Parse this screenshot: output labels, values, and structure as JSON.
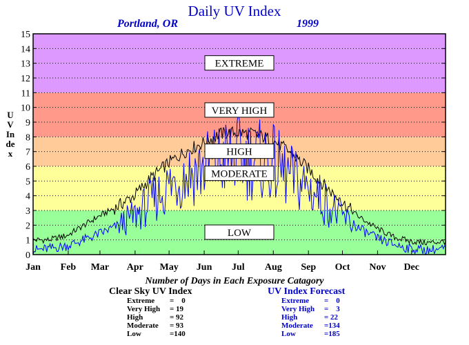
{
  "title": "Daily UV Index",
  "location": "Portland, OR",
  "year": "1999",
  "ylabel": "UV Index",
  "counts_title": "Number of Days in Each Exposure Catagory",
  "colors": {
    "extreme": "#dd99ff",
    "very_high": "#ff9a8a",
    "high": "#ffcc99",
    "moderate": "#ffff99",
    "low": "#99ff99",
    "clear_sky_line": "#000000",
    "forecast_line": "#0000ff"
  },
  "clear_sky": {
    "heading": "Clear Sky UV Index",
    "rows": [
      {
        "name": "Extreme",
        "value": "=    0"
      },
      {
        "name": "Very High",
        "value": "= 19"
      },
      {
        "name": "High",
        "value": "= 92"
      },
      {
        "name": "Moderate",
        "value": "= 93"
      },
      {
        "name": "Low",
        "value": "=140"
      }
    ]
  },
  "forecast": {
    "heading": "UV Index Forecast",
    "rows": [
      {
        "name": "Extreme",
        "value": "=    0"
      },
      {
        "name": "Very High",
        "value": "=    3"
      },
      {
        "name": "High",
        "value": "= 22"
      },
      {
        "name": "Moderate",
        "value": "=134"
      },
      {
        "name": "Low",
        "value": "=185"
      }
    ]
  },
  "chart_data": {
    "type": "line",
    "title": "Daily UV Index",
    "ylabel": "UV Index",
    "xlabel": "",
    "ylim": [
      0,
      15
    ],
    "yticks": [
      "0",
      "1",
      "2",
      "3",
      "4",
      "5",
      "6",
      "7",
      "8",
      "9",
      "10",
      "11",
      "12",
      "13",
      "14",
      "15"
    ],
    "months": [
      "Jan",
      "Feb",
      "Mar",
      "Apr",
      "May",
      "Jun",
      "Jul",
      "Aug",
      "Sep",
      "Oct",
      "Nov",
      "Dec"
    ],
    "grid": true,
    "bands": [
      {
        "label": "LOW",
        "from": 0,
        "to": 3,
        "label_y": 1.5
      },
      {
        "label": "MODERATE",
        "from": 3,
        "to": 6,
        "label_y": 5.5
      },
      {
        "label": "HIGH",
        "from": 6,
        "to": 8,
        "label_y": 7.0
      },
      {
        "label": "VERY HIGH",
        "from": 8,
        "to": 11,
        "label_y": 9.8
      },
      {
        "label": "EXTREME",
        "from": 11,
        "to": 15,
        "label_y": 13.0
      }
    ],
    "series": [
      {
        "name": "Clear Sky UV Index",
        "x": [
          1,
          15,
          31,
          46,
          59,
          74,
          90,
          105,
          120,
          135,
          151,
          166,
          181,
          196,
          212,
          227,
          243,
          258,
          273,
          288,
          304,
          319,
          334,
          349,
          365
        ],
        "y": [
          1.0,
          1.0,
          1.3,
          2.0,
          2.6,
          3.2,
          4.0,
          5.2,
          6.2,
          7.0,
          7.6,
          8.2,
          8.3,
          8.2,
          7.8,
          7.0,
          5.9,
          4.7,
          3.6,
          2.6,
          1.8,
          1.2,
          0.9,
          0.8,
          0.9
        ]
      },
      {
        "name": "UV Index Forecast",
        "x": [
          1,
          15,
          31,
          46,
          59,
          74,
          90,
          105,
          120,
          135,
          151,
          166,
          181,
          196,
          212,
          227,
          243,
          258,
          273,
          288,
          304,
          319,
          334,
          349,
          365
        ],
        "y": [
          0.3,
          0.4,
          0.6,
          1.0,
          1.4,
          1.9,
          2.6,
          3.6,
          4.6,
          5.4,
          5.9,
          6.4,
          6.7,
          6.5,
          6.2,
          5.3,
          4.6,
          3.6,
          2.6,
          1.8,
          1.1,
          0.7,
          0.4,
          0.3,
          0.4
        ]
      }
    ]
  }
}
